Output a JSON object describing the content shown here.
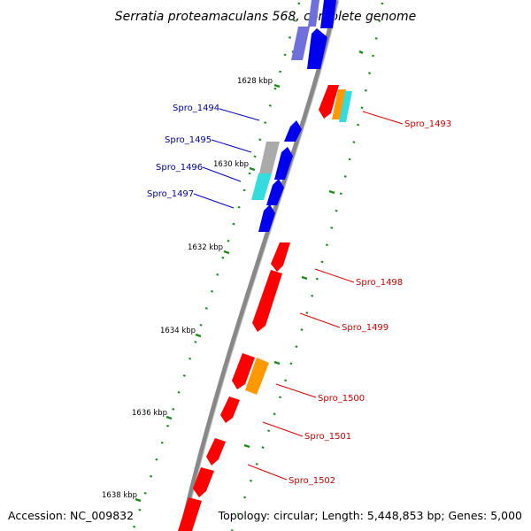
{
  "title": "Serratia proteamaculans 568, complete genome",
  "footer": {
    "accession": "Accession: NC_009832",
    "info": "Topology: circular; Length: 5,448,853 bp; Genes: 5,000"
  },
  "ruler": {
    "labels": [
      "1628 kbp",
      "1630 kbp",
      "1632 kbp",
      "1634 kbp",
      "1636 kbp",
      "1638 kbp"
    ]
  },
  "genes": {
    "left": [
      "Spro_1494",
      "Spro_1495",
      "Spro_1496",
      "Spro_1497"
    ],
    "right": [
      "Spro_1493",
      "Spro_1498",
      "Spro_1499",
      "Spro_1500",
      "Spro_1501",
      "Spro_1502"
    ]
  },
  "colors": {
    "forward": "#ff0000",
    "reverse": "#0000ee",
    "reverse_light": "#7070dd",
    "orange": "#ff9900",
    "cyan": "#33dddd",
    "gray": "#aaaaaa",
    "backbone": "#888888",
    "label_left": "#000099",
    "label_right": "#cc0000",
    "tick": "#1a8a1a"
  }
}
